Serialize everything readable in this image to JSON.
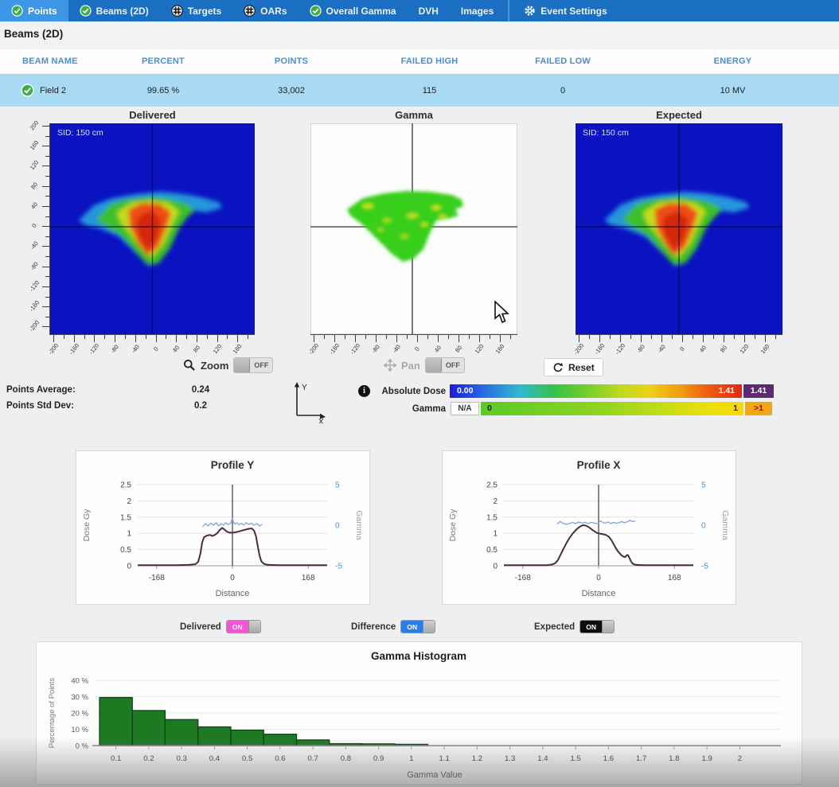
{
  "nav": {
    "tabs": [
      {
        "label": "Points",
        "icon": "check",
        "selected": true
      },
      {
        "label": "Beams (2D)",
        "icon": "check",
        "selected": false
      },
      {
        "label": "Targets",
        "icon": "target",
        "selected": false
      },
      {
        "label": "OARs",
        "icon": "target",
        "selected": false
      },
      {
        "label": "Overall Gamma",
        "icon": "check",
        "selected": false
      },
      {
        "label": "DVH",
        "icon": "none",
        "selected": false
      },
      {
        "label": "Images",
        "icon": "none",
        "selected": false
      },
      {
        "label": "Event Settings",
        "icon": "gear",
        "selected": false,
        "separated": true
      }
    ]
  },
  "page_title": "Beams (2D)",
  "beam_table": {
    "headers": [
      "BEAM NAME",
      "PERCENT",
      "POINTS",
      "FAILED HIGH",
      "FAILED LOW",
      "ENERGY"
    ],
    "rows": [
      {
        "status_icon": "check-circle",
        "name": "Field 2",
        "percent": "99.65 %",
        "points": "33,002",
        "failed_high": "115",
        "failed_low": "0",
        "energy": "10 MV"
      }
    ]
  },
  "viewers": {
    "panels": [
      {
        "title": "Delivered",
        "sid_label": "SID: 150 cm",
        "type": "dose"
      },
      {
        "title": "Gamma",
        "sid_label": "",
        "type": "gamma"
      },
      {
        "title": "Expected",
        "sid_label": "SID: 150 cm",
        "type": "dose"
      }
    ],
    "x_tick_labels": [
      "-200",
      "-160",
      "-120",
      "-80",
      "-40",
      "0",
      "40",
      "80",
      "120",
      "160"
    ],
    "y_tick_labels": [
      "200",
      "160",
      "120",
      "80",
      "40",
      "0",
      "-40",
      "-80",
      "-120",
      "-160",
      "-200"
    ]
  },
  "controls": {
    "zoom_label": "Zoom",
    "zoom_state": "OFF",
    "pan_label": "Pan",
    "pan_state": "OFF",
    "reset_label": "Reset"
  },
  "stats": {
    "points_average_label": "Points Average:",
    "points_average": "0.24",
    "points_std_label": "Points Std Dev:",
    "points_std": "0.2"
  },
  "colorbars": {
    "absolute_dose": {
      "label": "Absolute Dose",
      "min": "0.00",
      "max": "1.41",
      "overflow": "1.41",
      "overflow_color": "#5c2a6e"
    },
    "gamma": {
      "label": "Gamma",
      "na": "N/A",
      "min": "0",
      "max": "1",
      "overflow": ">1",
      "overflow_color": "#f2a515"
    }
  },
  "layer_toggles": [
    {
      "label": "Delivered",
      "state": "ON",
      "color": "#f653d6"
    },
    {
      "label": "Difference",
      "state": "ON",
      "color": "#2c7de6"
    },
    {
      "label": "Expected",
      "state": "ON",
      "color": "#0d0d0d"
    }
  ],
  "chart_data": [
    {
      "id": "profileY",
      "type": "line",
      "title": "Profile Y",
      "xlabel": "Distance",
      "ylabel_left": "Dose Gy",
      "ylabel_right": "Gamma",
      "xlim": [
        -210,
        210
      ],
      "x_ticks": [
        "-168",
        "0",
        "168"
      ],
      "x_tick_values": [
        -168,
        0,
        168
      ],
      "ylim_left": [
        0,
        2.5
      ],
      "left_ticks": [
        "2.5",
        "2",
        "1.5",
        "1",
        "0.5",
        "0"
      ],
      "left_tick_values": [
        2.5,
        2,
        1.5,
        1,
        0.5,
        0
      ],
      "ylim_right": [
        -5,
        5
      ],
      "right_ticks": [
        "5",
        "0",
        "-5"
      ],
      "right_tick_values": [
        5,
        0,
        -5
      ],
      "series": [
        {
          "name": "Dose",
          "axis": "left",
          "color": "#4b2c3c",
          "points": [
            [
              -210,
              0.02
            ],
            [
              -160,
              0.02
            ],
            [
              -120,
              0.02
            ],
            [
              -95,
              0.03
            ],
            [
              -82,
              0.05
            ],
            [
              -76,
              0.12
            ],
            [
              -71,
              0.38
            ],
            [
              -67,
              0.72
            ],
            [
              -63,
              0.88
            ],
            [
              -57,
              0.93
            ],
            [
              -50,
              0.95
            ],
            [
              -45,
              0.92
            ],
            [
              -40,
              0.94
            ],
            [
              -34,
              1.0
            ],
            [
              -28,
              1.1
            ],
            [
              -23,
              1.17
            ],
            [
              -18,
              1.12
            ],
            [
              -12,
              1.05
            ],
            [
              -6,
              1.02
            ],
            [
              0,
              1.02
            ],
            [
              6,
              1.03
            ],
            [
              12,
              1.05
            ],
            [
              20,
              1.08
            ],
            [
              28,
              1.11
            ],
            [
              36,
              1.14
            ],
            [
              43,
              1.15
            ],
            [
              48,
              1.08
            ],
            [
              52,
              0.92
            ],
            [
              56,
              0.62
            ],
            [
              60,
              0.32
            ],
            [
              64,
              0.14
            ],
            [
              70,
              0.06
            ],
            [
              78,
              0.03
            ],
            [
              100,
              0.02
            ],
            [
              160,
              0.02
            ],
            [
              210,
              0.02
            ]
          ]
        },
        {
          "name": "Difference",
          "axis": "right",
          "color": "#7da3dd",
          "points": [
            [
              -66,
              -0.2
            ],
            [
              -60,
              0.2
            ],
            [
              -54,
              -0.1
            ],
            [
              -48,
              0.25
            ],
            [
              -42,
              0.0
            ],
            [
              -36,
              0.3
            ],
            [
              -30,
              -0.1
            ],
            [
              -25,
              0.2
            ],
            [
              -20,
              0.0
            ],
            [
              -15,
              0.3
            ],
            [
              -10,
              0.1
            ],
            [
              -5,
              0.2
            ],
            [
              -2,
              0.5
            ],
            [
              0,
              0.9
            ],
            [
              2,
              0.4
            ],
            [
              5,
              0.15
            ],
            [
              10,
              0.3
            ],
            [
              15,
              0.05
            ],
            [
              20,
              0.25
            ],
            [
              25,
              0.0
            ],
            [
              30,
              0.3
            ],
            [
              36,
              0.1
            ],
            [
              42,
              0.25
            ],
            [
              48,
              0.0
            ],
            [
              54,
              0.2
            ],
            [
              60,
              -0.1
            ],
            [
              66,
              0.1
            ]
          ]
        }
      ]
    },
    {
      "id": "profileX",
      "type": "line",
      "title": "Profile X",
      "xlabel": "Distance",
      "ylabel_left": "Dose Gy",
      "ylabel_right": "Gamma",
      "xlim": [
        -210,
        210
      ],
      "x_ticks": [
        "-168",
        "0",
        "168"
      ],
      "x_tick_values": [
        -168,
        0,
        168
      ],
      "ylim_left": [
        0,
        2.5
      ],
      "left_ticks": [
        "2.5",
        "2",
        "1.5",
        "1",
        "0.5",
        "0"
      ],
      "left_tick_values": [
        2.5,
        2,
        1.5,
        1,
        0.5,
        0
      ],
      "ylim_right": [
        -5,
        5
      ],
      "right_ticks": [
        "5",
        "0",
        "-5"
      ],
      "right_tick_values": [
        5,
        0,
        -5
      ],
      "series": [
        {
          "name": "Dose",
          "axis": "left",
          "color": "#4b2c3c",
          "points": [
            [
              -210,
              0.02
            ],
            [
              -150,
              0.02
            ],
            [
              -115,
              0.02
            ],
            [
              -103,
              0.04
            ],
            [
              -96,
              0.08
            ],
            [
              -90,
              0.18
            ],
            [
              -84,
              0.35
            ],
            [
              -78,
              0.52
            ],
            [
              -72,
              0.68
            ],
            [
              -65,
              0.85
            ],
            [
              -57,
              1.0
            ],
            [
              -49,
              1.12
            ],
            [
              -42,
              1.2
            ],
            [
              -35,
              1.25
            ],
            [
              -29,
              1.24
            ],
            [
              -23,
              1.2
            ],
            [
              -16,
              1.13
            ],
            [
              -9,
              1.06
            ],
            [
              -3,
              1.01
            ],
            [
              3,
              0.99
            ],
            [
              10,
              0.97
            ],
            [
              16,
              0.95
            ],
            [
              22,
              0.9
            ],
            [
              27,
              0.82
            ],
            [
              32,
              0.7
            ],
            [
              37,
              0.57
            ],
            [
              42,
              0.46
            ],
            [
              47,
              0.38
            ],
            [
              51,
              0.32
            ],
            [
              55,
              0.28
            ],
            [
              59,
              0.27
            ],
            [
              62,
              0.32
            ],
            [
              65,
              0.33
            ],
            [
              68,
              0.25
            ],
            [
              72,
              0.13
            ],
            [
              76,
              0.06
            ],
            [
              82,
              0.03
            ],
            [
              100,
              0.02
            ],
            [
              160,
              0.02
            ],
            [
              210,
              0.02
            ]
          ]
        },
        {
          "name": "Difference",
          "axis": "right",
          "color": "#7da3dd",
          "points": [
            [
              -92,
              0.15
            ],
            [
              -85,
              0.45
            ],
            [
              -79,
              0.25
            ],
            [
              -72,
              0.1
            ],
            [
              -65,
              0.2
            ],
            [
              -58,
              0.35
            ],
            [
              -51,
              0.2
            ],
            [
              -44,
              0.4
            ],
            [
              -37,
              0.25
            ],
            [
              -30,
              0.35
            ],
            [
              -23,
              0.2
            ],
            [
              -16,
              0.35
            ],
            [
              -9,
              0.25
            ],
            [
              -3,
              0.2
            ],
            [
              0,
              0.3
            ],
            [
              4,
              0.55
            ],
            [
              9,
              0.35
            ],
            [
              15,
              0.25
            ],
            [
              21,
              0.4
            ],
            [
              27,
              0.2
            ],
            [
              33,
              0.35
            ],
            [
              39,
              0.25
            ],
            [
              45,
              0.3
            ],
            [
              51,
              0.45
            ],
            [
              57,
              0.3
            ],
            [
              63,
              0.4
            ],
            [
              69,
              0.6
            ],
            [
              75,
              0.45
            ],
            [
              81,
              0.5
            ]
          ]
        }
      ]
    },
    {
      "id": "gammaHistogram",
      "type": "bar",
      "title": "Gamma Histogram",
      "xlabel": "Gamma Value",
      "ylabel": "Percentage of Points",
      "categories": [
        "0.1",
        "0.2",
        "0.3",
        "0.4",
        "0.5",
        "0.6",
        "0.7",
        "0.8",
        "0.9",
        "1",
        "1.1",
        "1.2",
        "1.3",
        "1.4",
        "1.5",
        "1.6",
        "1.7",
        "1.8",
        "1.9",
        "2"
      ],
      "values": [
        29.5,
        21.5,
        16,
        11.5,
        9.5,
        7,
        3.5,
        1.2,
        1.1,
        0.8,
        0,
        0,
        0,
        0,
        0,
        0,
        0,
        0,
        0,
        0
      ],
      "y_ticks": [
        "40 %",
        "30 %",
        "20 %",
        "10 %",
        "0 %"
      ],
      "y_tick_values": [
        40,
        30,
        20,
        10,
        0
      ],
      "ylim": [
        0,
        44
      ],
      "bar_color": "#1d7a23",
      "bar_border": "#0d3d11",
      "grid": true,
      "legend": "none"
    }
  ]
}
